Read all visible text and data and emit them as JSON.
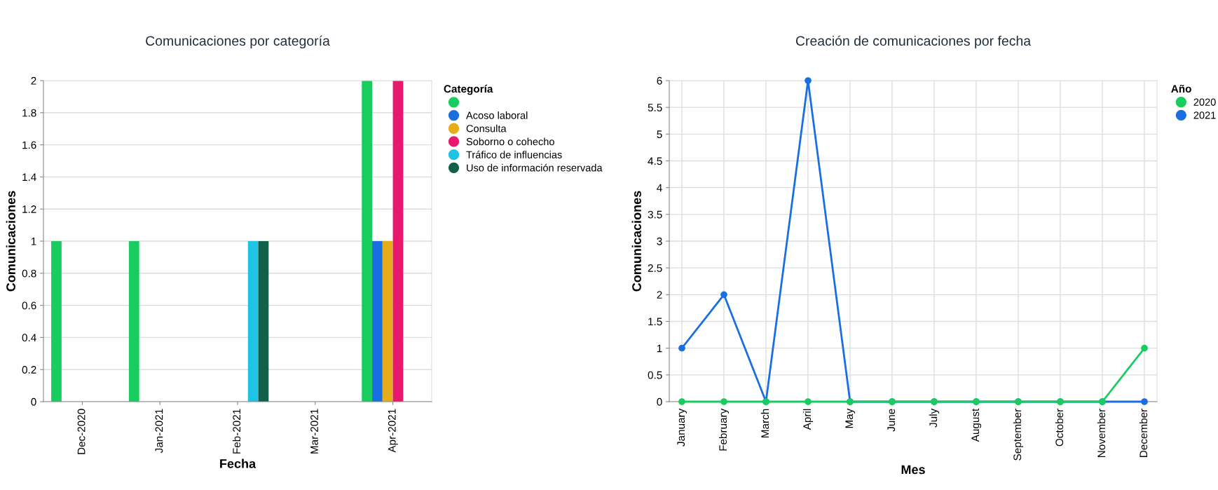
{
  "chart_data": [
    {
      "type": "bar",
      "title": "Comunicaciones por categoría",
      "xlabel": "Fecha",
      "ylabel": "Comunicaciones",
      "legend_title": "Categoría",
      "categories": [
        "Dec-2020",
        "Jan-2021",
        "Feb-2021",
        "Mar-2021",
        "Apr-2021"
      ],
      "series": [
        {
          "color": "#19cc5f",
          "values": [
            1,
            1,
            null,
            null,
            2
          ]
        },
        {
          "name": "Acoso laboral",
          "color": "#1a6fe0",
          "values": [
            null,
            null,
            null,
            null,
            1
          ]
        },
        {
          "name": "Consulta",
          "color": "#e6ad1a",
          "values": [
            null,
            null,
            null,
            null,
            1
          ]
        },
        {
          "name": "Soborno o cohecho",
          "color": "#e8186e",
          "values": [
            null,
            null,
            null,
            null,
            2
          ]
        },
        {
          "name": "Tráfico de influencias",
          "color": "#1ec3e6",
          "values": [
            null,
            null,
            1,
            null,
            null
          ]
        },
        {
          "name": "Uso de información reservada",
          "color": "#12604a",
          "values": [
            null,
            null,
            1,
            null,
            null
          ]
        }
      ],
      "ylim": [
        0,
        2
      ],
      "yticks": [
        0,
        0.2,
        0.4,
        0.6,
        0.8,
        1,
        1.2,
        1.4,
        1.6,
        1.8,
        2
      ],
      "grid": "y",
      "legend": "top right"
    },
    {
      "type": "line",
      "title": "Creación de comunicaciones por fecha",
      "xlabel": "Mes",
      "ylabel": "Comunicaciones",
      "legend_title": "Año",
      "categories": [
        "January",
        "February",
        "March",
        "April",
        "May",
        "June",
        "July",
        "August",
        "September",
        "October",
        "November",
        "December"
      ],
      "series": [
        {
          "name": "2021",
          "color": "#1a6fe0",
          "values": [
            1,
            2,
            0,
            6,
            0,
            0,
            0,
            0,
            0,
            0,
            0,
            0
          ]
        },
        {
          "name": "2020",
          "color": "#19cc5f",
          "values": [
            0,
            0,
            0,
            0,
            0,
            0,
            0,
            0,
            0,
            0,
            0,
            1
          ]
        }
      ],
      "ylim": [
        0,
        6
      ],
      "yticks": [
        0,
        0.5,
        1,
        1.5,
        2,
        2.5,
        3,
        3.5,
        4,
        4.5,
        5,
        5.5,
        6
      ],
      "grid": true,
      "legend": "top right",
      "marker": "circle",
      "line_style": "solid"
    }
  ]
}
